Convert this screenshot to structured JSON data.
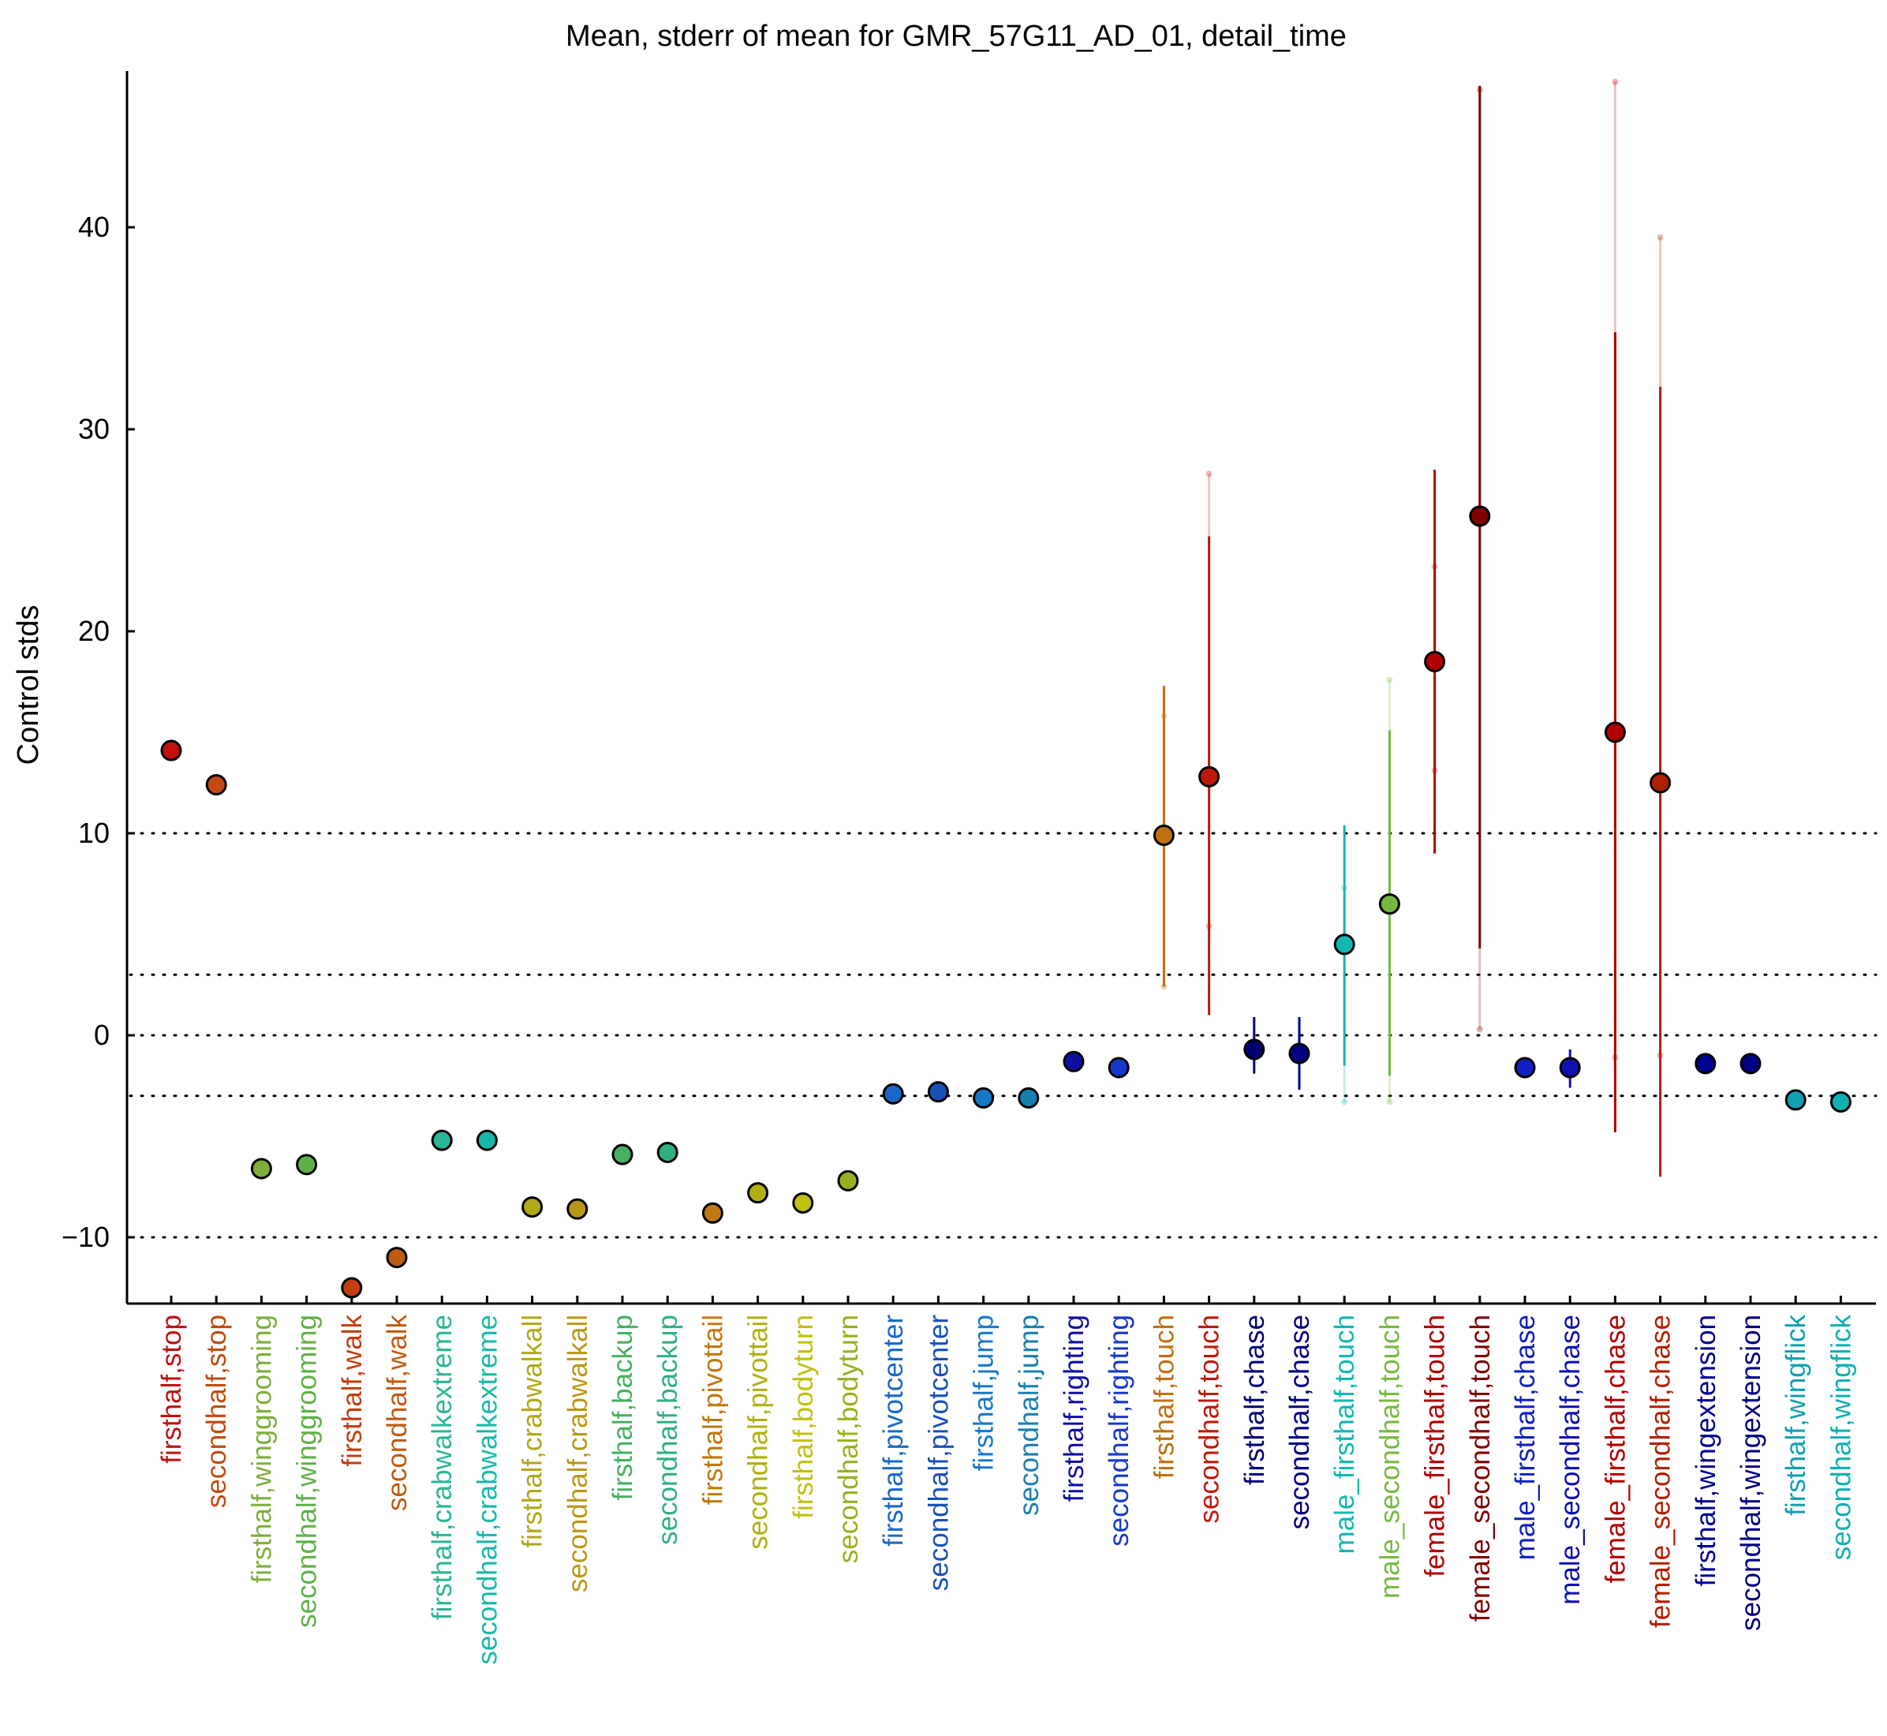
{
  "chart_data": {
    "type": "scatter",
    "title": "Mean, stderr of mean for GMR_57G11_AD_01, detail_time",
    "xlabel": "",
    "ylabel": "Control stds",
    "ylim": [
      -13,
      48
    ],
    "yticks": [
      -10,
      0,
      10,
      20,
      30,
      40
    ],
    "ytick_labels": [
      "−10",
      "0",
      "10",
      "20",
      "30",
      "40"
    ],
    "reference_lines": [
      -10,
      -3,
      0,
      3,
      10
    ],
    "grid": false,
    "categories": [
      "firsthalf,stop",
      "secondhalf,stop",
      "firsthalf,winggrooming",
      "secondhalf,winggrooming",
      "firsthalf,walk",
      "secondhalf,walk",
      "firsthalf,crabwalkextreme",
      "secondhalf,crabwalkextreme",
      "firsthalf,crabwalkall",
      "secondhalf,crabwalkall",
      "firsthalf,backup",
      "secondhalf,backup",
      "firsthalf,pivottail",
      "secondhalf,pivottail",
      "firsthalf,bodyturn",
      "secondhalf,bodyturn",
      "firsthalf,pivotcenter",
      "secondhalf,pivotcenter",
      "firsthalf,jump",
      "secondhalf,jump",
      "firsthalf,righting",
      "secondhalf,righting",
      "firsthalf,touch",
      "secondhalf,touch",
      "firsthalf,chase",
      "secondhalf,chase",
      "male_firsthalf,touch",
      "male_secondhalf,touch",
      "female_firsthalf,touch",
      "female_secondhalf,touch",
      "male_firsthalf,chase",
      "male_secondhalf,chase",
      "female_firsthalf,chase",
      "female_secondhalf,chase",
      "firsthalf,wingextension",
      "secondhalf,wingextension",
      "firsthalf,wingflick",
      "secondhalf,wingflick"
    ],
    "values": [
      14.1,
      12.4,
      -6.6,
      -6.4,
      -12.5,
      -11.0,
      -5.2,
      -5.2,
      -8.5,
      -8.6,
      -5.9,
      -5.8,
      -8.8,
      -7.8,
      -8.3,
      -7.2,
      -2.9,
      -2.8,
      -3.1,
      -3.1,
      -1.3,
      -1.6,
      9.9,
      12.8,
      -0.7,
      -0.9,
      4.5,
      6.5,
      18.5,
      25.7,
      -1.6,
      -1.6,
      15.0,
      12.5,
      -1.4,
      -1.4,
      -3.2,
      -3.3
    ],
    "stderr_ranges": [
      null,
      null,
      null,
      null,
      null,
      null,
      null,
      null,
      null,
      null,
      null,
      null,
      null,
      null,
      null,
      null,
      null,
      null,
      null,
      null,
      null,
      null,
      [
        2.4,
        17.3
      ],
      [
        1.0,
        24.7
      ],
      [
        -1.9,
        0.9
      ],
      [
        -2.7,
        0.9
      ],
      [
        -1.5,
        10.4
      ],
      [
        -2.0,
        15.1
      ],
      [
        9.0,
        28.0
      ],
      [
        4.3,
        47.0
      ],
      null,
      [
        -2.6,
        -0.7
      ],
      [
        -4.8,
        34.8
      ],
      [
        -7.0,
        32.1
      ],
      null,
      null,
      null,
      null
    ],
    "outer_ranges": [
      null,
      null,
      null,
      null,
      null,
      null,
      null,
      null,
      null,
      null,
      null,
      null,
      null,
      null,
      null,
      null,
      null,
      null,
      null,
      null,
      null,
      null,
      [
        2.4,
        15.8
      ],
      [
        5.4,
        27.8
      ],
      null,
      null,
      [
        -3.3,
        7.3
      ],
      [
        -3.3,
        17.6
      ],
      [
        13.1,
        23.2
      ],
      [
        0.3,
        46.8
      ],
      null,
      null,
      [
        -1.1,
        47.2
      ],
      [
        -1.0,
        39.5
      ],
      null,
      null,
      null,
      null
    ],
    "marker_colors": [
      "#c01010",
      "#c04a10",
      "#7fae3a",
      "#5fb048",
      "#c03e10",
      "#c05a10",
      "#2ab598",
      "#18b8a8",
      "#b0a818",
      "#b89818",
      "#48b060",
      "#30b080",
      "#c07810",
      "#b0b010",
      "#c0c010",
      "#98b020",
      "#1868c8",
      "#1850b8",
      "#1878c8",
      "#1880b0",
      "#1010a0",
      "#1838c8",
      "#c07010",
      "#c01808",
      "#000070",
      "#000080",
      "#10b8b0",
      "#78b840",
      "#b00000",
      "#800000",
      "#1020c0",
      "#1010b0",
      "#b00000",
      "#b02000",
      "#000090",
      "#000080",
      "#10a0b0",
      "#10b0b0"
    ],
    "label_colors": [
      "#c01010",
      "#c04a10",
      "#7fae3a",
      "#5fb048",
      "#c03e10",
      "#c05a10",
      "#2ab598",
      "#18b8a8",
      "#b0a818",
      "#b89818",
      "#48b060",
      "#30b080",
      "#c07810",
      "#b0b010",
      "#c0c010",
      "#98b020",
      "#1868c8",
      "#1850b8",
      "#1878c8",
      "#1880b0",
      "#1010a0",
      "#1838c8",
      "#c07010",
      "#c01808",
      "#000070",
      "#000080",
      "#10b8b0",
      "#78b840",
      "#b00000",
      "#800000",
      "#1020c0",
      "#1010b0",
      "#b00000",
      "#b02000",
      "#000090",
      "#000080",
      "#10a0b0",
      "#10b0b0"
    ]
  }
}
